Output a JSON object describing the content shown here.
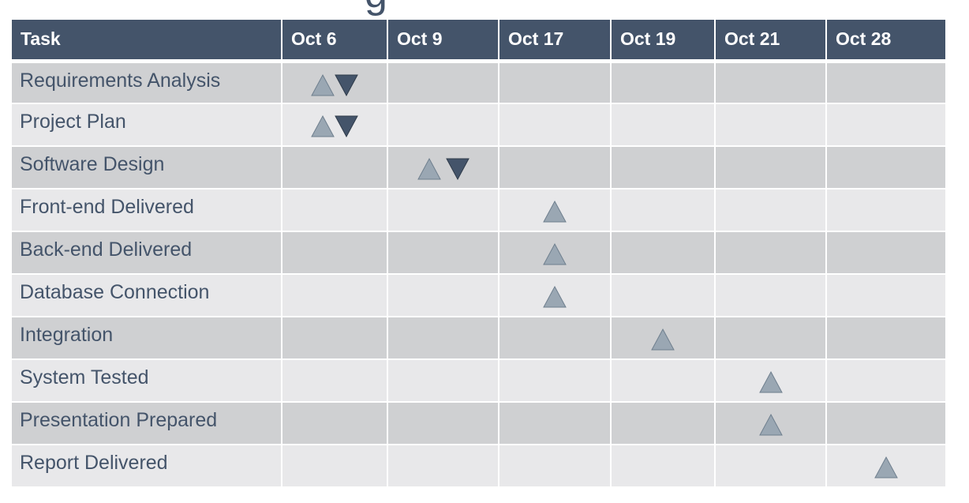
{
  "title_fragment": "g",
  "colors": {
    "header_bg": "#44546a",
    "row_odd": "#cfd0d2",
    "row_even": "#e8e8ea",
    "start_marker": "#9aa7b3",
    "end_marker": "#44546a",
    "text": "#44546a"
  },
  "header": {
    "task": "Task",
    "dates": [
      "Oct 6",
      "Oct 9",
      "Oct 17",
      "Oct 19",
      "Oct 21",
      "Oct 28"
    ]
  },
  "rows": [
    {
      "task": "Requirements Analysis",
      "start": 0,
      "end": 0
    },
    {
      "task": "Project Plan",
      "start": 0,
      "end": 0
    },
    {
      "task": "Software Design",
      "start": 1,
      "end": 1
    },
    {
      "task": "Front-end Delivered",
      "start": 2,
      "end": null
    },
    {
      "task": "Back-end Delivered",
      "start": 2,
      "end": null
    },
    {
      "task": "Database Connection",
      "start": 2,
      "end": null
    },
    {
      "task": "Integration",
      "start": 3,
      "end": null
    },
    {
      "task": "System Tested",
      "start": 4,
      "end": null
    },
    {
      "task": "Presentation Prepared",
      "start": 4,
      "end": null
    },
    {
      "task": "Report Delivered",
      "start": 5,
      "end": null
    }
  ]
}
